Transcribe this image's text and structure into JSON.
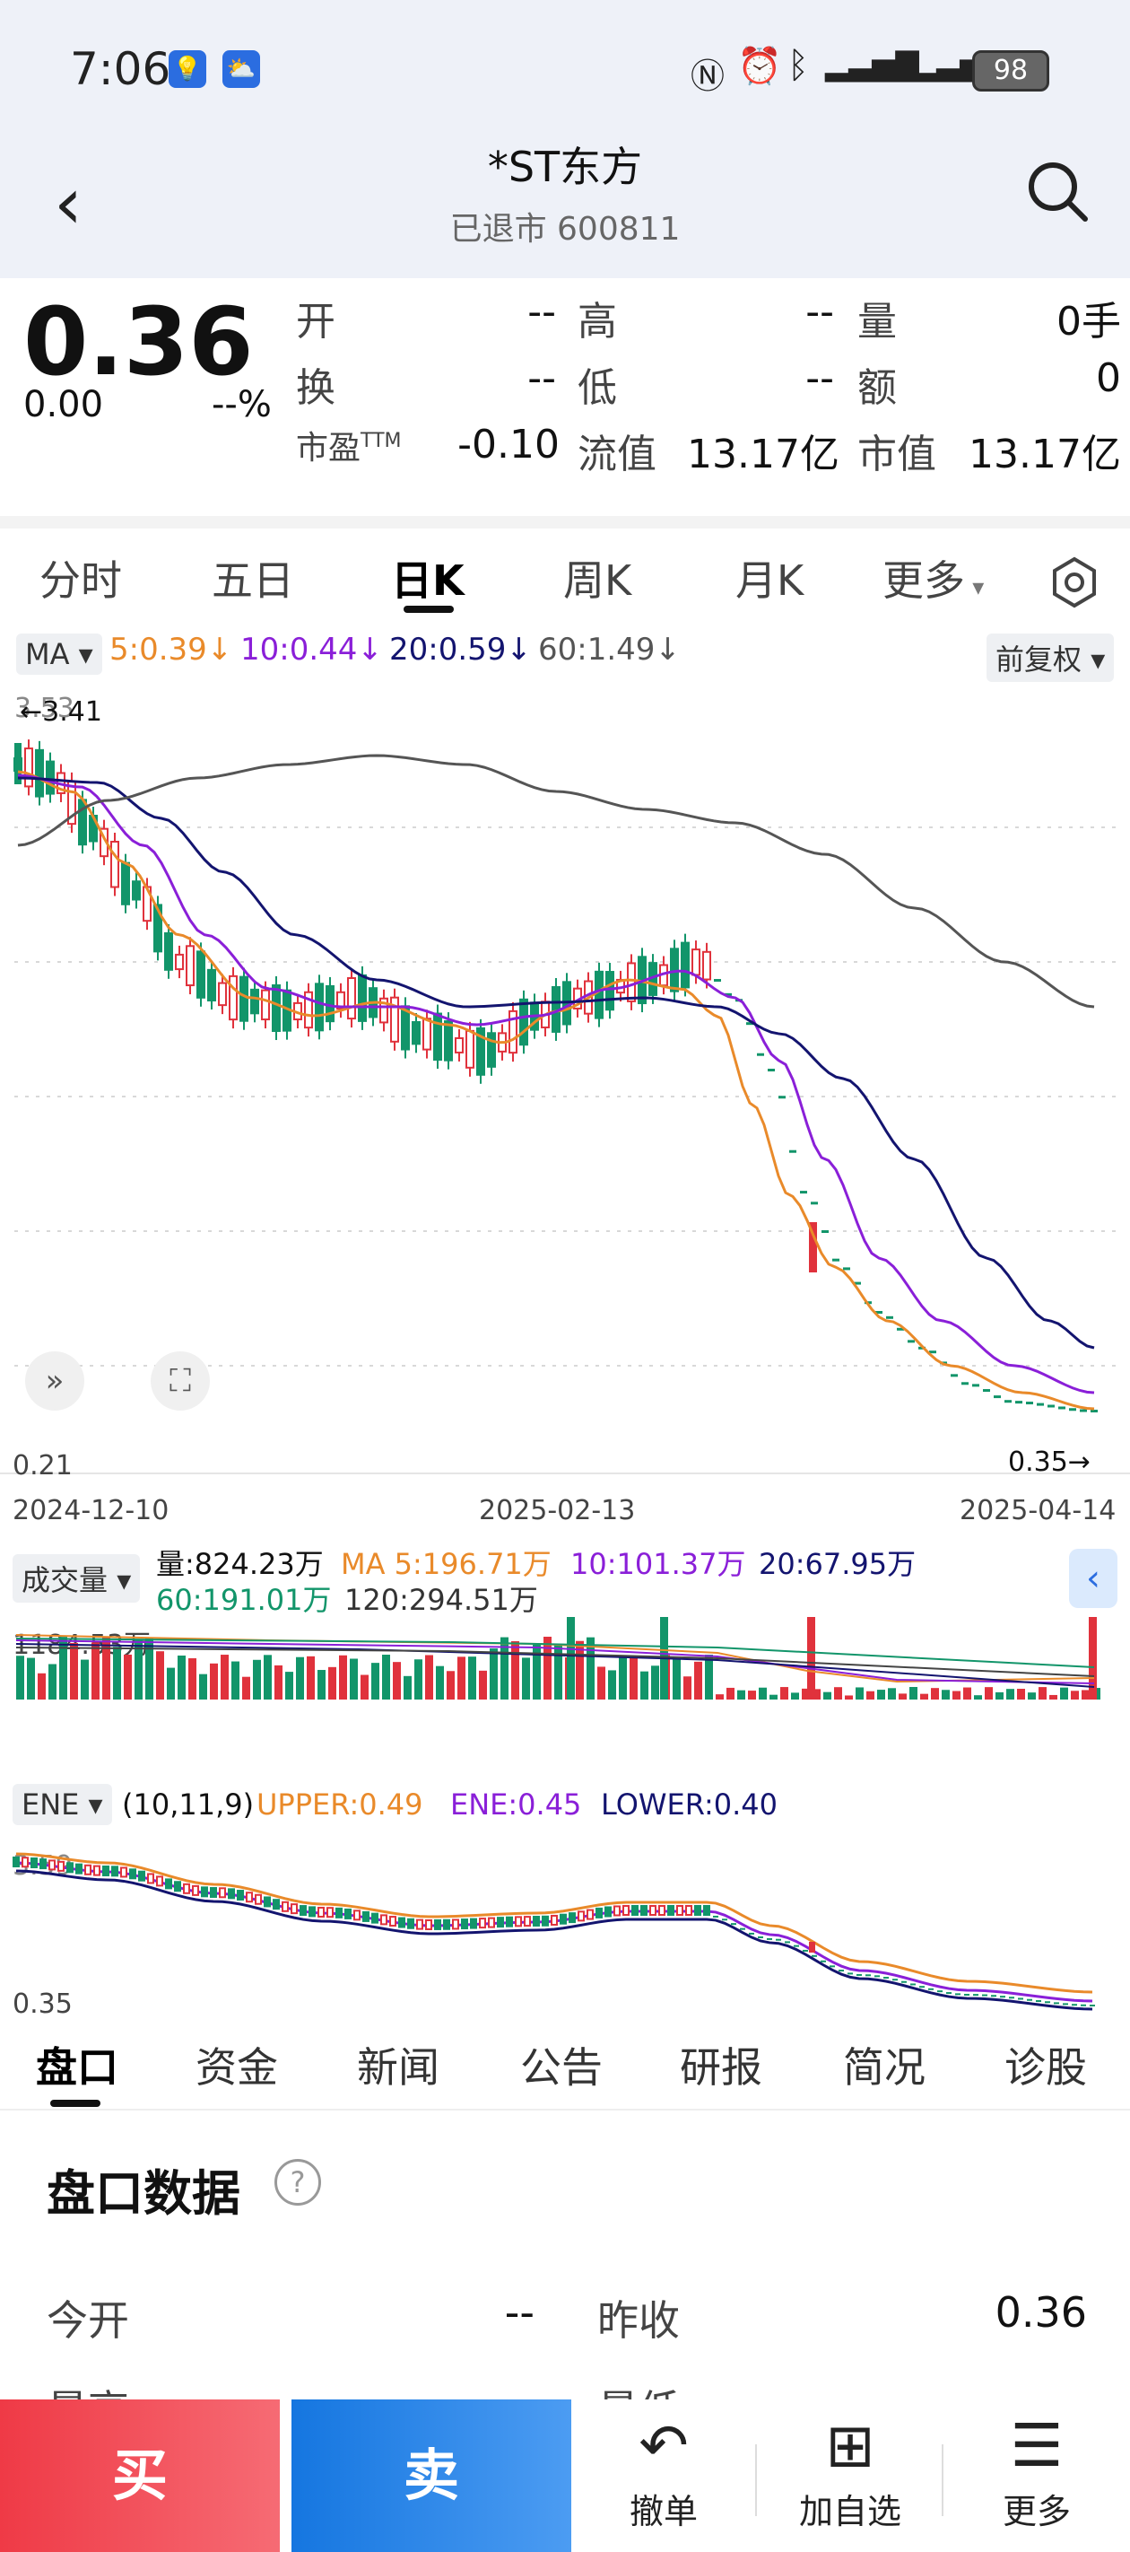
{
  "status_bar": {
    "time": "7:06",
    "battery": "98"
  },
  "header": {
    "title": "*ST东方",
    "subtitle": "已退市 600811"
  },
  "quote": {
    "price": "0.36",
    "change": "0.00",
    "change_pct": "--%",
    "fields": [
      {
        "label": "开",
        "value": "--"
      },
      {
        "label": "高",
        "value": "--"
      },
      {
        "label": "量",
        "value": "0手"
      },
      {
        "label": "换",
        "value": "--"
      },
      {
        "label": "低",
        "value": "--"
      },
      {
        "label": "额",
        "value": "0"
      },
      {
        "label": "市盈",
        "label_sup": "TTM",
        "value": "-0.10"
      },
      {
        "label": "流值",
        "value": "13.17亿"
      },
      {
        "label": "市值",
        "value": "13.17亿"
      }
    ]
  },
  "period_tabs": [
    "分时",
    "五日",
    "日K",
    "周K",
    "月K",
    "更多"
  ],
  "active_period": "日K",
  "kline": {
    "ma_label": "MA",
    "ma5": "5:0.39↓",
    "ma10": "10:0.44↓",
    "ma20": "20:0.59↓",
    "ma60": "60:1.49↓",
    "adjust": "前复权",
    "high_label": "3.41",
    "top_axis": "3.53",
    "low_label": "0.21",
    "last_label": "0.35",
    "dates": [
      "2024-12-10",
      "2025-02-13",
      "2025-04-14"
    ],
    "colors": {
      "up": "#e0323c",
      "down": "#12956a",
      "ma5": "#e98a2a",
      "ma10": "#8a1fd8",
      "ma20": "#13146f",
      "ma60": "#555555"
    }
  },
  "volume": {
    "label": "成交量",
    "vol": "量:824.23万",
    "ma5": "MA 5:196.71万",
    "ma10": "10:101.37万",
    "ma20": "20:67.95万",
    "ma60": "60:191.01万",
    "ma120": "120:294.51万",
    "max_label": "1184.53万"
  },
  "ene": {
    "label": "ENE",
    "params": "(10,11,9)",
    "upper": "UPPER:0.49",
    "ene": "ENE:0.45",
    "lower": "LOWER:0.40",
    "top_axis": "3.59",
    "bottom_axis": "0.35"
  },
  "detail_tabs": [
    "盘口",
    "资金",
    "新闻",
    "公告",
    "研报",
    "简况",
    "诊股"
  ],
  "active_detail": "盘口",
  "section": {
    "title": "盘口数据"
  },
  "rows": [
    {
      "label": "今开",
      "value": "--",
      "label2": "昨收",
      "value2": "0.36"
    },
    {
      "label": "最高",
      "label2": "最低"
    }
  ],
  "bottom_bar": {
    "buy": "买",
    "sell": "卖",
    "withdraw": "撤单",
    "watch": "加自选",
    "more": "更多"
  }
}
